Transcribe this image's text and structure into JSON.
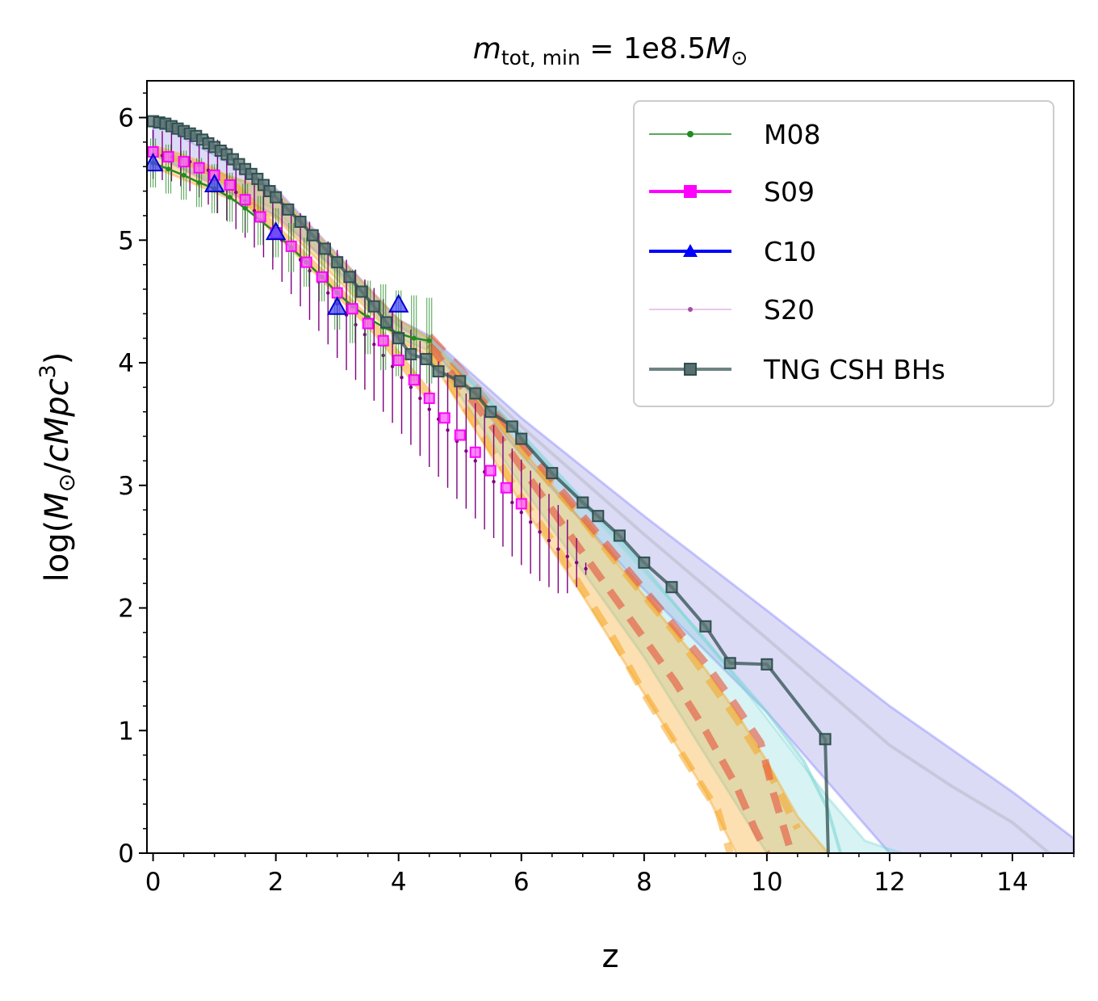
{
  "chart_data": {
    "type": "line",
    "title": {
      "m": "m",
      "sub": "tot, min",
      "eq": " = 1e8.5",
      "M": "M",
      "sun": "⊙"
    },
    "xlabel": "z",
    "ylabel": {
      "pre": "log(",
      "M": "M",
      "sun": "⊙",
      "slash": "/",
      "cMpc": "cMpc",
      "sup": "3",
      "post": ")"
    },
    "xlim": [
      -0.1,
      15
    ],
    "ylim": [
      0,
      6.3
    ],
    "xticks": [
      0,
      2,
      4,
      6,
      8,
      10,
      12,
      14
    ],
    "yticks": [
      0,
      1,
      2,
      3,
      4,
      5,
      6
    ],
    "legend_position": "top-right",
    "legend": [
      "M08",
      "S09",
      "C10",
      "S20",
      "TNG CSH BHs"
    ],
    "colors": {
      "M08": "#228b22",
      "S09": "#ff00ff",
      "C10": "#0000ff",
      "S20": "#800080",
      "TNG": "#2f4f4f",
      "orange": "#f5a623",
      "red": "#e8533a",
      "cyan": "#7fd6d6",
      "blue_band": "#9999e6"
    },
    "series": [
      {
        "name": "M08",
        "marker": "dot",
        "x": [
          0,
          0.25,
          0.5,
          0.75,
          1,
          1.25,
          1.5,
          1.75,
          2,
          2.25,
          2.5,
          2.75,
          3,
          3.25,
          3.5,
          3.75,
          4,
          4.25,
          4.5
        ],
        "y": [
          5.63,
          5.58,
          5.53,
          5.47,
          5.42,
          5.35,
          5.26,
          5.16,
          5.06,
          4.94,
          4.82,
          4.7,
          4.57,
          4.46,
          4.37,
          4.29,
          4.24,
          4.2,
          4.18
        ],
        "err": [
          0.2,
          0.2,
          0.2,
          0.2,
          0.2,
          0.2,
          0.2,
          0.2,
          0.2,
          0.2,
          0.2,
          0.2,
          0.3,
          0.3,
          0.3,
          0.35,
          0.35,
          0.35,
          0.35
        ]
      },
      {
        "name": "S09",
        "marker": "square",
        "x": [
          0,
          0.25,
          0.5,
          0.75,
          1,
          1.25,
          1.5,
          1.75,
          2,
          2.25,
          2.5,
          2.75,
          3,
          3.25,
          3.5,
          3.75,
          4,
          4.25,
          4.5,
          4.75,
          5,
          5.25,
          5.5,
          5.75,
          6
        ],
        "y": [
          5.72,
          5.68,
          5.64,
          5.59,
          5.53,
          5.45,
          5.33,
          5.19,
          5.06,
          4.95,
          4.82,
          4.7,
          4.57,
          4.44,
          4.32,
          4.18,
          4.02,
          3.86,
          3.71,
          3.55,
          3.41,
          3.27,
          3.12,
          2.98,
          2.85
        ]
      },
      {
        "name": "C10",
        "marker": "triangle",
        "x": [
          0,
          1,
          2,
          3,
          4
        ],
        "y": [
          5.62,
          5.45,
          5.06,
          4.45,
          4.47
        ]
      },
      {
        "name": "S20",
        "marker": "dot-small",
        "x": [
          0,
          0.15,
          0.3,
          0.45,
          0.6,
          0.75,
          0.9,
          1.05,
          1.2,
          1.35,
          1.5,
          1.65,
          1.8,
          1.95,
          2.1,
          2.25,
          2.4,
          2.55,
          2.7,
          2.85,
          3.0,
          3.15,
          3.3,
          3.45,
          3.6,
          3.75,
          3.9,
          4.05,
          4.2,
          4.35,
          4.5,
          4.65,
          4.8,
          4.95,
          5.1,
          5.25,
          5.4,
          5.55,
          5.7,
          5.85,
          6.0,
          6.15,
          6.3,
          6.45,
          6.6,
          6.75,
          6.9,
          7.05
        ],
        "y": [
          5.7,
          5.69,
          5.68,
          5.66,
          5.64,
          5.61,
          5.57,
          5.52,
          5.46,
          5.39,
          5.32,
          5.24,
          5.16,
          5.08,
          5.0,
          4.92,
          4.84,
          4.75,
          4.66,
          4.57,
          4.48,
          4.39,
          4.31,
          4.23,
          4.15,
          4.06,
          3.97,
          3.88,
          3.8,
          3.71,
          3.62,
          3.54,
          3.45,
          3.36,
          3.28,
          3.2,
          3.11,
          3.03,
          2.95,
          2.86,
          2.78,
          2.7,
          2.62,
          2.55,
          2.48,
          2.42,
          2.37,
          2.32
        ],
        "err": [
          0.2,
          0.2,
          0.2,
          0.22,
          0.24,
          0.26,
          0.28,
          0.3,
          0.3,
          0.3,
          0.3,
          0.3,
          0.3,
          0.32,
          0.34,
          0.36,
          0.38,
          0.4,
          0.4,
          0.42,
          0.44,
          0.45,
          0.45,
          0.45,
          0.46,
          0.46,
          0.46,
          0.46,
          0.47,
          0.47,
          0.47,
          0.47,
          0.47,
          0.47,
          0.47,
          0.47,
          0.47,
          0.46,
          0.45,
          0.44,
          0.43,
          0.42,
          0.4,
          0.38,
          0.36,
          0.3,
          0.2,
          0.05
        ]
      },
      {
        "name": "TNG CSH BHs",
        "marker": "square",
        "x": [
          0,
          0.1,
          0.2,
          0.3,
          0.4,
          0.5,
          0.6,
          0.7,
          0.8,
          0.9,
          1.0,
          1.1,
          1.2,
          1.3,
          1.4,
          1.5,
          1.6,
          1.7,
          1.8,
          1.9,
          2.0,
          2.2,
          2.4,
          2.6,
          2.8,
          3.0,
          3.2,
          3.4,
          3.6,
          3.8,
          4.0,
          4.2,
          4.45,
          4.65,
          5.0,
          5.25,
          5.5,
          5.85,
          6.0,
          6.5,
          7.0,
          7.25,
          7.6,
          8.0,
          8.45,
          9.0,
          9.4,
          10.0,
          10.95,
          11.0
        ],
        "y": [
          5.97,
          5.96,
          5.95,
          5.93,
          5.91,
          5.89,
          5.87,
          5.85,
          5.82,
          5.79,
          5.76,
          5.73,
          5.7,
          5.66,
          5.62,
          5.58,
          5.54,
          5.5,
          5.45,
          5.4,
          5.35,
          5.25,
          5.15,
          5.04,
          4.93,
          4.82,
          4.7,
          4.58,
          4.46,
          4.33,
          4.2,
          4.07,
          4.03,
          3.93,
          3.85,
          3.75,
          3.6,
          3.48,
          3.38,
          3.1,
          2.86,
          2.75,
          2.59,
          2.37,
          2.17,
          1.85,
          1.55,
          1.54,
          0.93,
          0
        ]
      }
    ],
    "bands": [
      {
        "name": "blue-band",
        "x": [
          0,
          2,
          4,
          4.5,
          6,
          8,
          10,
          12,
          14,
          15
        ],
        "upper": [
          5.97,
          5.42,
          4.35,
          4.22,
          3.55,
          2.75,
          1.98,
          1.2,
          0.5,
          0.12
        ],
        "lower": [
          5.7,
          5.2,
          4.3,
          4.15,
          3.25,
          2.15,
          1.15,
          0,
          0,
          0
        ]
      },
      {
        "name": "cyan-band",
        "x": [
          0,
          2,
          4,
          4.5,
          6,
          7,
          8,
          9,
          10,
          11,
          11.6,
          12.2
        ],
        "upper": [
          5.75,
          5.38,
          4.32,
          4.2,
          3.4,
          2.85,
          2.3,
          1.75,
          1.1,
          0.45,
          0.1,
          0
        ],
        "lower": [
          5.7,
          5.25,
          4.2,
          4.1,
          3.0,
          2.3,
          1.6,
          0.8,
          0,
          0,
          0,
          0
        ]
      },
      {
        "name": "orange-band",
        "x": [
          0,
          2,
          4,
          4.5,
          6,
          7,
          8,
          9,
          9.5,
          10,
          10.5,
          11
        ],
        "upper": [
          5.72,
          5.4,
          4.35,
          4.2,
          3.3,
          2.7,
          2.1,
          1.5,
          1.15,
          0.75,
          0.3,
          0
        ],
        "lower": [
          5.6,
          5.18,
          4.18,
          4.05,
          2.85,
          2.1,
          1.3,
          0.5,
          0,
          0,
          0,
          0
        ]
      }
    ],
    "dashed_curves": [
      {
        "name": "orange-dashed-upper",
        "x": [
          4.5,
          5,
          5.5,
          6,
          6.5,
          7,
          7.5,
          8,
          8.5,
          9,
          9.5,
          10,
          10.5
        ],
        "y": [
          4.2,
          3.9,
          3.6,
          3.3,
          3.0,
          2.72,
          2.4,
          2.1,
          1.8,
          1.45,
          1.1,
          0.7,
          0.2
        ]
      },
      {
        "name": "orange-dashed-lower",
        "x": [
          4.5,
          5,
          5.5,
          6,
          6.5,
          7,
          7.5,
          8,
          8.5,
          9,
          9.2,
          9.4
        ],
        "y": [
          4.1,
          3.7,
          3.3,
          2.9,
          2.55,
          2.15,
          1.75,
          1.3,
          0.9,
          0.5,
          0.35,
          0
        ]
      },
      {
        "name": "red-dashed-upper",
        "x": [
          4.5,
          5,
          5.5,
          6,
          6.5,
          7,
          7.5,
          8,
          8.5,
          9,
          9.5,
          9.9,
          10.1,
          10.4
        ],
        "y": [
          4.22,
          3.95,
          3.65,
          3.35,
          3.05,
          2.75,
          2.45,
          2.15,
          1.85,
          1.55,
          1.2,
          0.9,
          0.5,
          0
        ]
      },
      {
        "name": "red-dashed-lower",
        "x": [
          4.5,
          5,
          5.5,
          6,
          6.5,
          7,
          7.5,
          8,
          8.5,
          9,
          9.5,
          9.8,
          10.0
        ],
        "y": [
          4.15,
          3.82,
          3.5,
          3.15,
          2.8,
          2.45,
          2.1,
          1.75,
          1.4,
          1.0,
          0.55,
          0.2,
          0
        ]
      },
      {
        "name": "cyan-curve",
        "x": [
          4.5,
          6,
          7,
          8,
          9,
          10,
          10.6,
          11,
          11.2
        ],
        "y": [
          4.2,
          3.42,
          2.88,
          2.33,
          1.73,
          1.15,
          0.75,
          0.35,
          0
        ]
      },
      {
        "name": "grey-curve",
        "x": [
          4.5,
          6,
          8,
          10,
          12,
          13,
          14,
          14.6
        ],
        "y": [
          4.2,
          3.48,
          2.6,
          1.75,
          0.88,
          0.55,
          0.25,
          0
        ]
      }
    ]
  }
}
